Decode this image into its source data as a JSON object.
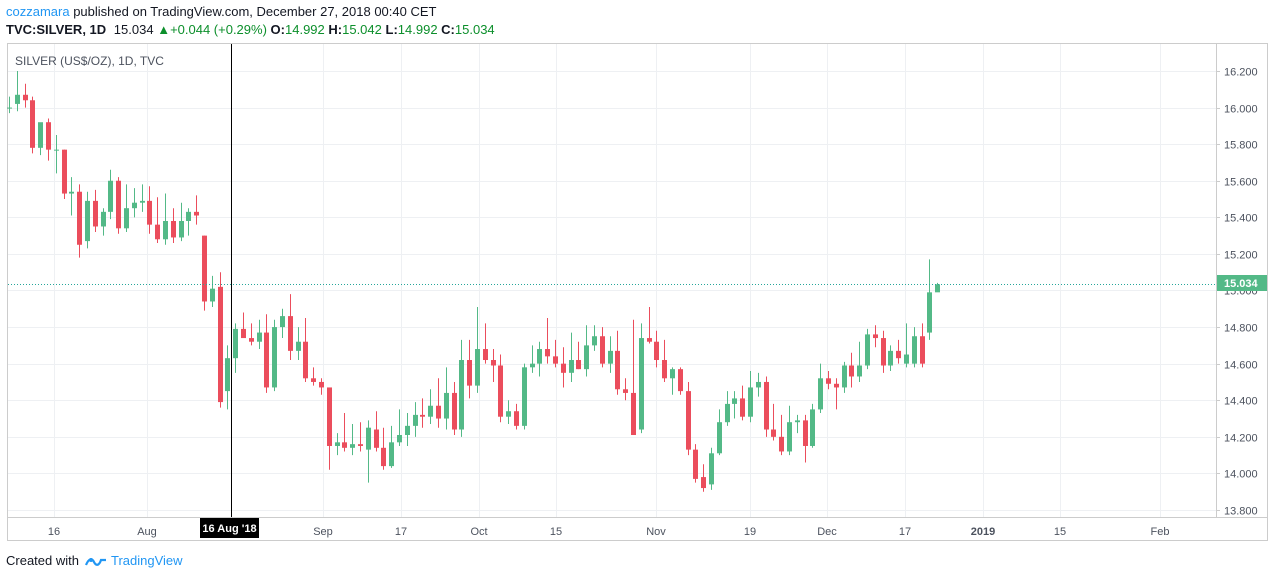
{
  "header": {
    "author": "cozzamara",
    "published_text": "published on TradingView.com, December 27, 2018 00:40 CET",
    "symbol": "TVC:SILVER, 1D",
    "last": "15.034",
    "change": "+0.044 (+0.29%)",
    "o_label": "O:",
    "o_value": "14.992",
    "h_label": "H:",
    "h_value": "15.042",
    "l_label": "L:",
    "l_value": "14.992",
    "c_label": "C:",
    "c_value": "15.034"
  },
  "chart_title": "SILVER (US$/OZ), 1D, TVC",
  "price_label": "15.034",
  "crosshair_label": "16 Aug '18",
  "footer": {
    "created_with": "Created with",
    "brand": "TradingView"
  },
  "colors": {
    "up": "#53b987",
    "down": "#eb4d5c",
    "accent": "#2196f3",
    "price_line": "#26a69a"
  },
  "chart_data": {
    "type": "candlestick",
    "ylim": [
      13.75,
      16.3
    ],
    "yticks": [
      "16.200",
      "16.000",
      "15.800",
      "15.600",
      "15.400",
      "15.200",
      "15.000",
      "14.800",
      "14.600",
      "14.400",
      "14.200",
      "14.000",
      "13.800"
    ],
    "xticks": [
      "16",
      "Aug",
      "16 Aug '18",
      "Sep",
      "17",
      "Oct",
      "15",
      "Nov",
      "19",
      "Dec",
      "17",
      "2019",
      "15",
      "Feb"
    ],
    "last_price": 15.034,
    "candles": [
      {
        "o": 16.0,
        "h": 16.06,
        "l": 15.97,
        "c": 16.0
      },
      {
        "o": 16.02,
        "h": 16.2,
        "l": 15.98,
        "c": 16.07
      },
      {
        "o": 16.07,
        "h": 16.13,
        "l": 16.0,
        "c": 16.04
      },
      {
        "o": 16.04,
        "h": 16.06,
        "l": 15.75,
        "c": 15.78
      },
      {
        "o": 15.78,
        "h": 15.9,
        "l": 15.74,
        "c": 15.92
      },
      {
        "o": 15.92,
        "h": 15.94,
        "l": 15.71,
        "c": 15.77
      },
      {
        "o": 15.77,
        "h": 15.85,
        "l": 15.64,
        "c": 15.77
      },
      {
        "o": 15.77,
        "h": 15.77,
        "l": 15.5,
        "c": 15.53
      },
      {
        "o": 15.53,
        "h": 15.62,
        "l": 15.41,
        "c": 15.54
      },
      {
        "o": 15.54,
        "h": 15.58,
        "l": 15.18,
        "c": 15.25
      },
      {
        "o": 15.27,
        "h": 15.54,
        "l": 15.23,
        "c": 15.49
      },
      {
        "o": 15.49,
        "h": 15.55,
        "l": 15.32,
        "c": 15.35
      },
      {
        "o": 15.35,
        "h": 15.45,
        "l": 15.3,
        "c": 15.43
      },
      {
        "o": 15.43,
        "h": 15.66,
        "l": 15.39,
        "c": 15.6
      },
      {
        "o": 15.6,
        "h": 15.62,
        "l": 15.31,
        "c": 15.34
      },
      {
        "o": 15.34,
        "h": 15.58,
        "l": 15.32,
        "c": 15.45
      },
      {
        "o": 15.45,
        "h": 15.56,
        "l": 15.4,
        "c": 15.48
      },
      {
        "o": 15.48,
        "h": 15.58,
        "l": 15.43,
        "c": 15.49
      },
      {
        "o": 15.49,
        "h": 15.57,
        "l": 15.31,
        "c": 15.36
      },
      {
        "o": 15.36,
        "h": 15.51,
        "l": 15.26,
        "c": 15.28
      },
      {
        "o": 15.28,
        "h": 15.53,
        "l": 15.25,
        "c": 15.38
      },
      {
        "o": 15.38,
        "h": 15.45,
        "l": 15.26,
        "c": 15.29
      },
      {
        "o": 15.29,
        "h": 15.48,
        "l": 15.27,
        "c": 15.38
      },
      {
        "o": 15.38,
        "h": 15.45,
        "l": 15.3,
        "c": 15.43
      },
      {
        "o": 15.43,
        "h": 15.52,
        "l": 15.36,
        "c": 15.41
      },
      {
        "o": 15.3,
        "h": 15.3,
        "l": 14.89,
        "c": 14.94
      },
      {
        "o": 14.94,
        "h": 15.08,
        "l": 14.91,
        "c": 15.01
      },
      {
        "o": 15.02,
        "h": 15.1,
        "l": 14.36,
        "c": 14.39
      },
      {
        "o": 14.45,
        "h": 14.7,
        "l": 14.35,
        "c": 14.63
      },
      {
        "o": 14.63,
        "h": 14.82,
        "l": 14.55,
        "c": 14.79
      },
      {
        "o": 14.79,
        "h": 14.88,
        "l": 14.74,
        "c": 14.74
      },
      {
        "o": 14.74,
        "h": 14.82,
        "l": 14.7,
        "c": 14.72
      },
      {
        "o": 14.72,
        "h": 14.84,
        "l": 14.68,
        "c": 14.77
      },
      {
        "o": 14.77,
        "h": 14.87,
        "l": 14.44,
        "c": 14.47
      },
      {
        "o": 14.47,
        "h": 14.84,
        "l": 14.45,
        "c": 14.8
      },
      {
        "o": 14.8,
        "h": 14.9,
        "l": 14.74,
        "c": 14.86
      },
      {
        "o": 14.86,
        "h": 14.98,
        "l": 14.62,
        "c": 14.67
      },
      {
        "o": 14.67,
        "h": 14.8,
        "l": 14.62,
        "c": 14.72
      },
      {
        "o": 14.72,
        "h": 14.85,
        "l": 14.5,
        "c": 14.52
      },
      {
        "o": 14.52,
        "h": 14.58,
        "l": 14.48,
        "c": 14.5
      },
      {
        "o": 14.5,
        "h": 14.52,
        "l": 14.43,
        "c": 14.47
      },
      {
        "o": 14.47,
        "h": 14.47,
        "l": 14.02,
        "c": 14.15
      },
      {
        "o": 14.15,
        "h": 14.22,
        "l": 14.1,
        "c": 14.17
      },
      {
        "o": 14.17,
        "h": 14.33,
        "l": 14.12,
        "c": 14.14
      },
      {
        "o": 14.14,
        "h": 14.27,
        "l": 14.1,
        "c": 14.16
      },
      {
        "o": 14.16,
        "h": 14.28,
        "l": 14.12,
        "c": 14.15
      },
      {
        "o": 14.13,
        "h": 14.29,
        "l": 13.95,
        "c": 14.25
      },
      {
        "o": 14.24,
        "h": 14.34,
        "l": 14.12,
        "c": 14.14
      },
      {
        "o": 14.14,
        "h": 14.25,
        "l": 14.02,
        "c": 14.04
      },
      {
        "o": 14.04,
        "h": 14.26,
        "l": 14.03,
        "c": 14.17
      },
      {
        "o": 14.17,
        "h": 14.35,
        "l": 14.15,
        "c": 14.21
      },
      {
        "o": 14.21,
        "h": 14.33,
        "l": 14.15,
        "c": 14.26
      },
      {
        "o": 14.26,
        "h": 14.39,
        "l": 14.2,
        "c": 14.32
      },
      {
        "o": 14.32,
        "h": 14.41,
        "l": 14.25,
        "c": 14.31
      },
      {
        "o": 14.31,
        "h": 14.46,
        "l": 14.27,
        "c": 14.37
      },
      {
        "o": 14.37,
        "h": 14.52,
        "l": 14.25,
        "c": 14.3
      },
      {
        "o": 14.3,
        "h": 14.58,
        "l": 14.24,
        "c": 14.44
      },
      {
        "o": 14.44,
        "h": 14.5,
        "l": 14.21,
        "c": 14.24
      },
      {
        "o": 14.24,
        "h": 14.73,
        "l": 14.2,
        "c": 14.62
      },
      {
        "o": 14.62,
        "h": 14.73,
        "l": 14.41,
        "c": 14.48
      },
      {
        "o": 14.48,
        "h": 14.91,
        "l": 14.44,
        "c": 14.68
      },
      {
        "o": 14.68,
        "h": 14.82,
        "l": 14.6,
        "c": 14.62
      },
      {
        "o": 14.62,
        "h": 14.68,
        "l": 14.5,
        "c": 14.59
      },
      {
        "o": 14.59,
        "h": 14.65,
        "l": 14.28,
        "c": 14.31
      },
      {
        "o": 14.31,
        "h": 14.4,
        "l": 14.27,
        "c": 14.34
      },
      {
        "o": 14.34,
        "h": 14.38,
        "l": 14.24,
        "c": 14.26
      },
      {
        "o": 14.26,
        "h": 14.6,
        "l": 14.24,
        "c": 14.58
      },
      {
        "o": 14.58,
        "h": 14.7,
        "l": 14.55,
        "c": 14.6
      },
      {
        "o": 14.6,
        "h": 14.72,
        "l": 14.53,
        "c": 14.68
      },
      {
        "o": 14.68,
        "h": 14.85,
        "l": 14.6,
        "c": 14.64
      },
      {
        "o": 14.64,
        "h": 14.73,
        "l": 14.58,
        "c": 14.6
      },
      {
        "o": 14.6,
        "h": 14.69,
        "l": 14.47,
        "c": 14.55
      },
      {
        "o": 14.55,
        "h": 14.77,
        "l": 14.5,
        "c": 14.62
      },
      {
        "o": 14.62,
        "h": 14.72,
        "l": 14.57,
        "c": 14.57
      },
      {
        "o": 14.57,
        "h": 14.81,
        "l": 14.53,
        "c": 14.7
      },
      {
        "o": 14.7,
        "h": 14.81,
        "l": 14.67,
        "c": 14.75
      },
      {
        "o": 14.75,
        "h": 14.8,
        "l": 14.58,
        "c": 14.6
      },
      {
        "o": 14.6,
        "h": 14.75,
        "l": 14.55,
        "c": 14.67
      },
      {
        "o": 14.67,
        "h": 14.78,
        "l": 14.43,
        "c": 14.46
      },
      {
        "o": 14.46,
        "h": 14.52,
        "l": 14.4,
        "c": 14.44
      },
      {
        "o": 14.44,
        "h": 14.84,
        "l": 14.21,
        "c": 14.21
      },
      {
        "o": 14.24,
        "h": 14.82,
        "l": 14.22,
        "c": 14.74
      },
      {
        "o": 14.74,
        "h": 14.91,
        "l": 14.71,
        "c": 14.72
      },
      {
        "o": 14.72,
        "h": 14.78,
        "l": 14.58,
        "c": 14.62
      },
      {
        "o": 14.62,
        "h": 14.73,
        "l": 14.5,
        "c": 14.52
      },
      {
        "o": 14.52,
        "h": 14.58,
        "l": 14.43,
        "c": 14.57
      },
      {
        "o": 14.57,
        "h": 14.58,
        "l": 14.43,
        "c": 14.45
      },
      {
        "o": 14.45,
        "h": 14.5,
        "l": 14.1,
        "c": 14.13
      },
      {
        "o": 14.13,
        "h": 14.16,
        "l": 13.95,
        "c": 13.97
      },
      {
        "o": 13.98,
        "h": 14.05,
        "l": 13.9,
        "c": 13.92
      },
      {
        "o": 13.94,
        "h": 14.14,
        "l": 13.91,
        "c": 14.11
      },
      {
        "o": 14.11,
        "h": 14.35,
        "l": 14.1,
        "c": 14.28
      },
      {
        "o": 14.28,
        "h": 14.45,
        "l": 14.26,
        "c": 14.38
      },
      {
        "o": 14.38,
        "h": 14.45,
        "l": 14.3,
        "c": 14.41
      },
      {
        "o": 14.41,
        "h": 14.48,
        "l": 14.29,
        "c": 14.31
      },
      {
        "o": 14.31,
        "h": 14.56,
        "l": 14.28,
        "c": 14.47
      },
      {
        "o": 14.47,
        "h": 14.55,
        "l": 14.42,
        "c": 14.5
      },
      {
        "o": 14.5,
        "h": 14.53,
        "l": 14.2,
        "c": 14.24
      },
      {
        "o": 14.24,
        "h": 14.38,
        "l": 14.18,
        "c": 14.2
      },
      {
        "o": 14.2,
        "h": 14.32,
        "l": 14.1,
        "c": 14.12
      },
      {
        "o": 14.12,
        "h": 14.37,
        "l": 14.1,
        "c": 14.28
      },
      {
        "o": 14.28,
        "h": 14.32,
        "l": 14.22,
        "c": 14.29
      },
      {
        "o": 14.29,
        "h": 14.32,
        "l": 14.06,
        "c": 14.15
      },
      {
        "o": 14.15,
        "h": 14.38,
        "l": 14.14,
        "c": 14.35
      },
      {
        "o": 14.35,
        "h": 14.6,
        "l": 14.33,
        "c": 14.52
      },
      {
        "o": 14.52,
        "h": 14.56,
        "l": 14.46,
        "c": 14.49
      },
      {
        "o": 14.49,
        "h": 14.52,
        "l": 14.35,
        "c": 14.47
      },
      {
        "o": 14.47,
        "h": 14.61,
        "l": 14.44,
        "c": 14.59
      },
      {
        "o": 14.59,
        "h": 14.66,
        "l": 14.47,
        "c": 14.53
      },
      {
        "o": 14.53,
        "h": 14.72,
        "l": 14.5,
        "c": 14.59
      },
      {
        "o": 14.59,
        "h": 14.79,
        "l": 14.57,
        "c": 14.76
      },
      {
        "o": 14.76,
        "h": 14.81,
        "l": 14.69,
        "c": 14.74
      },
      {
        "o": 14.74,
        "h": 14.78,
        "l": 14.55,
        "c": 14.59
      },
      {
        "o": 14.59,
        "h": 14.7,
        "l": 14.56,
        "c": 14.67
      },
      {
        "o": 14.67,
        "h": 14.73,
        "l": 14.6,
        "c": 14.63
      },
      {
        "o": 14.6,
        "h": 14.82,
        "l": 14.58,
        "c": 14.65
      },
      {
        "o": 14.6,
        "h": 14.8,
        "l": 14.58,
        "c": 14.75
      },
      {
        "o": 14.75,
        "h": 14.82,
        "l": 14.58,
        "c": 14.6
      },
      {
        "o": 14.77,
        "h": 15.17,
        "l": 14.73,
        "c": 14.99
      },
      {
        "o": 14.99,
        "h": 15.042,
        "l": 14.992,
        "c": 15.034
      }
    ]
  }
}
